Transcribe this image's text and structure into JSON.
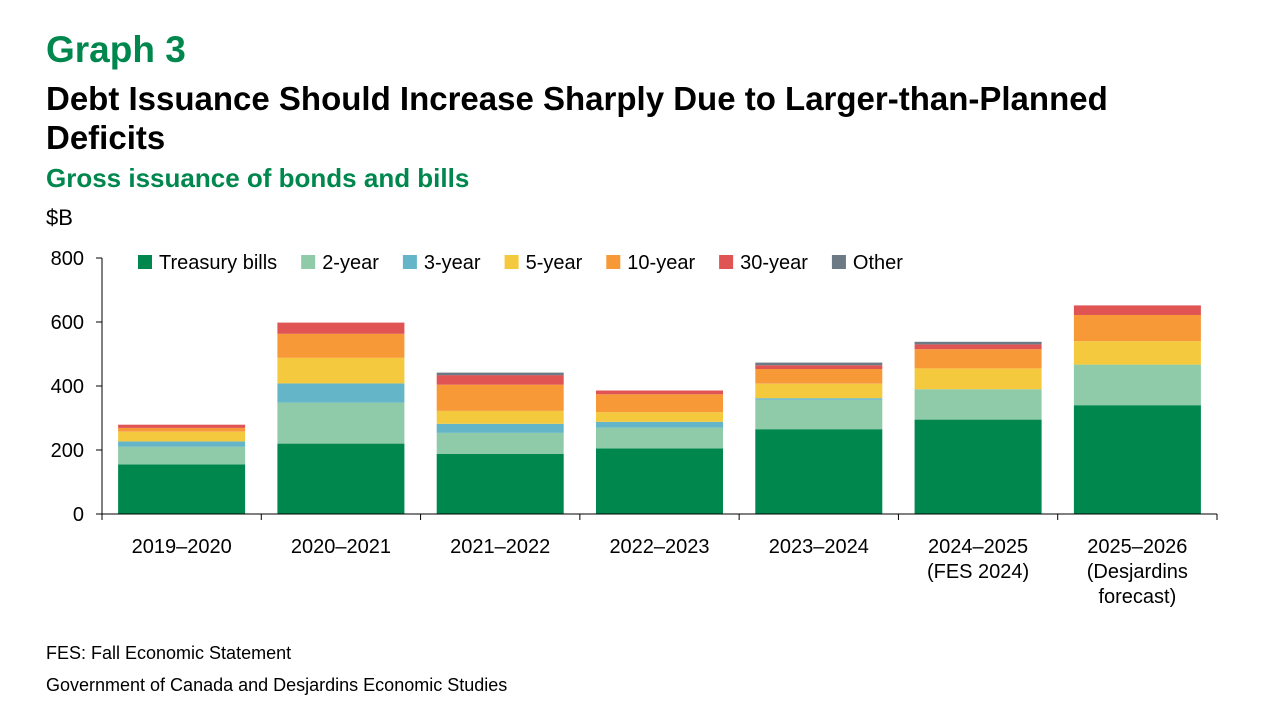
{
  "header": {
    "graph_label": "Graph 3",
    "title": "Debt Issuance Should Increase Sharply Due to Larger-than-Planned Deficits",
    "subtitle": "Gross issuance of bonds and bills",
    "unit": "$B"
  },
  "footer": {
    "note": "FES: Fall Economic Statement",
    "source": "Government of Canada and Desjardins Economic Studies"
  },
  "chart_data": {
    "type": "bar",
    "stacked": true,
    "categories": [
      [
        "2019–2020"
      ],
      [
        "2020–2021"
      ],
      [
        "2021–2022"
      ],
      [
        "2022–2023"
      ],
      [
        "2023–2024"
      ],
      [
        "2024–2025",
        "(FES 2024)"
      ],
      [
        "2025–2026",
        "(Desjardins",
        "forecast)"
      ]
    ],
    "series": [
      {
        "name": "Treasury bills",
        "color": "#00874e",
        "values": [
          155,
          220,
          188,
          205,
          265,
          295,
          340
        ]
      },
      {
        "name": "2-year",
        "color": "#8fcba8",
        "values": [
          55,
          128,
          66,
          65,
          92,
          95,
          127
        ]
      },
      {
        "name": "3-year",
        "color": "#64b5c8",
        "values": [
          17,
          60,
          28,
          18,
          5,
          0,
          0
        ]
      },
      {
        "name": "5-year",
        "color": "#f5c93e",
        "values": [
          30,
          80,
          40,
          30,
          45,
          65,
          73
        ]
      },
      {
        "name": "10-year",
        "color": "#f89938",
        "values": [
          12,
          75,
          82,
          56,
          46,
          60,
          82
        ]
      },
      {
        "name": "30-year",
        "color": "#e05454",
        "values": [
          10,
          35,
          30,
          12,
          12,
          15,
          30
        ]
      },
      {
        "name": "Other",
        "color": "#6c7a86",
        "values": [
          0,
          0,
          8,
          0,
          8,
          8,
          0
        ]
      }
    ],
    "yticks": [
      0,
      200,
      400,
      600,
      800
    ],
    "ylim": [
      0,
      800
    ],
    "legend_position": "top",
    "grid": false
  }
}
